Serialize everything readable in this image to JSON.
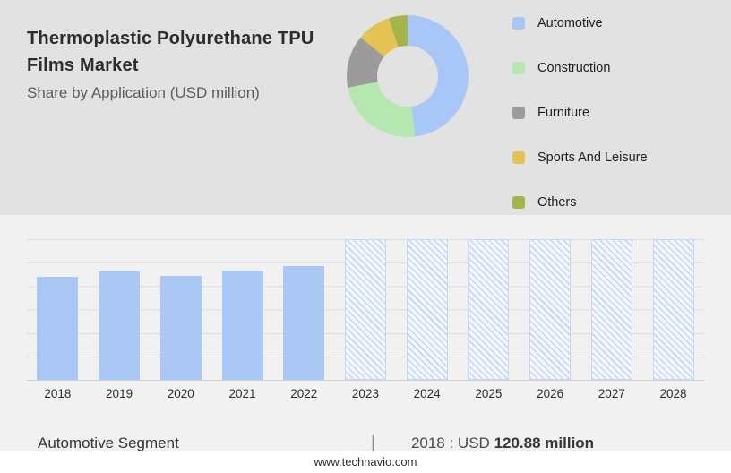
{
  "header": {
    "title_line1": "Thermoplastic Polyurethane TPU",
    "title_line2": "Films Market",
    "subtitle": "Share by Application (USD million)"
  },
  "chart_data": [
    {
      "type": "pie",
      "title": "Share by Application (USD million)",
      "donut": true,
      "legend_position": "right",
      "labels": [
        "Automotive",
        "Construction",
        "Furniture",
        "Sports And Leisure",
        "Others"
      ],
      "values": [
        48,
        24,
        14,
        9,
        5
      ],
      "colors": [
        "#a9c7f6",
        "#b4e8b0",
        "#9b9b9b",
        "#e5c254",
        "#a3b548"
      ]
    },
    {
      "type": "bar",
      "title": "Automotive Segment (USD million)",
      "categories": [
        "2018",
        "2019",
        "2020",
        "2021",
        "2022",
        "2023",
        "2024",
        "2025",
        "2026",
        "2027",
        "2028"
      ],
      "values": [
        120.88,
        127,
        122,
        128,
        134,
        null,
        null,
        null,
        null,
        null,
        null
      ],
      "forecast_categories": [
        "2023",
        "2024",
        "2025",
        "2026",
        "2027",
        "2028"
      ],
      "xlabel": "",
      "ylabel": "",
      "ylim": [
        0,
        165
      ],
      "grid": true,
      "bar_color": "#abc8f5",
      "forecast_style": "hatched"
    }
  ],
  "footer": {
    "segment_label": "Automotive Segment",
    "separator": "|",
    "value_prefix": "2018 : USD",
    "value_bold": "120.88 million",
    "website": "www.technavio.com"
  }
}
